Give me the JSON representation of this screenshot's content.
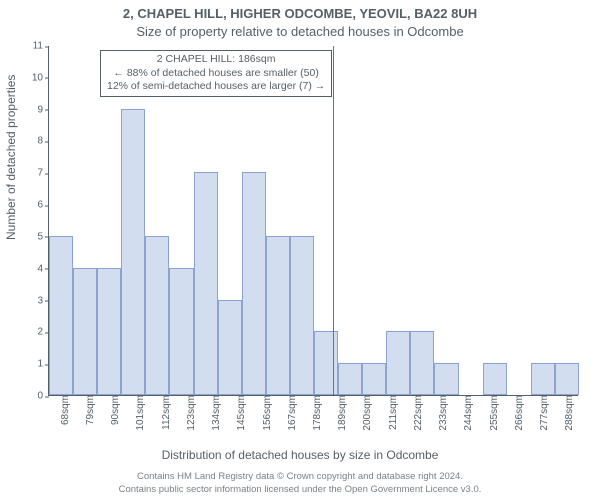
{
  "chart": {
    "type": "histogram",
    "title_main": "2, CHAPEL HILL, HIGHER ODCOMBE, YEOVIL, BA22 8UH",
    "title_sub": "Size of property relative to detached houses in Odcombe",
    "ylabel": "Number of detached properties",
    "xlabel": "Distribution of detached houses by size in Odcombe",
    "background_color": "#ffffff",
    "axis_color": "#555f66",
    "text_color": "#555f66",
    "title_fontsize": 13,
    "label_fontsize": 12,
    "tick_fontsize": 10,
    "y": {
      "lim": [
        0,
        11
      ],
      "tick_step": 1,
      "ticks": [
        0,
        1,
        2,
        3,
        4,
        5,
        6,
        7,
        8,
        9,
        10,
        11
      ]
    },
    "x": {
      "categories": [
        "68sqm",
        "79sqm",
        "90sqm",
        "101sqm",
        "112sqm",
        "123sqm",
        "134sqm",
        "145sqm",
        "156sqm",
        "167sqm",
        "178sqm",
        "189sqm",
        "200sqm",
        "211sqm",
        "222sqm",
        "233sqm",
        "244sqm",
        "255sqm",
        "266sqm",
        "277sqm",
        "288sqm"
      ],
      "tick_step_sqm": 11
    },
    "bars": {
      "values": [
        5,
        4,
        4,
        9,
        5,
        4,
        7,
        3,
        7,
        5,
        5,
        2,
        1,
        1,
        2,
        2,
        1,
        0,
        1,
        0,
        1,
        1
      ],
      "fill_color": "#d2deef",
      "border_color": "#8aa4cf",
      "bar_width": 1.0
    },
    "marker": {
      "position_category_index": 11.8,
      "line_color": "#d04a4a",
      "info": {
        "line1": "2 CHAPEL HILL: 186sqm",
        "line2": "← 88% of detached houses are smaller (50)",
        "line3": "12% of semi-detached houses are larger (7) →"
      },
      "info_box_border": "#555f66",
      "info_box_bg": "#ffffff",
      "info_fontsize": 10.5
    },
    "footer": {
      "line1": "Contains HM Land Registry data © Crown copyright and database right 2024.",
      "line2": "Contains public sector information licensed under the Open Government Licence v3.0."
    }
  }
}
